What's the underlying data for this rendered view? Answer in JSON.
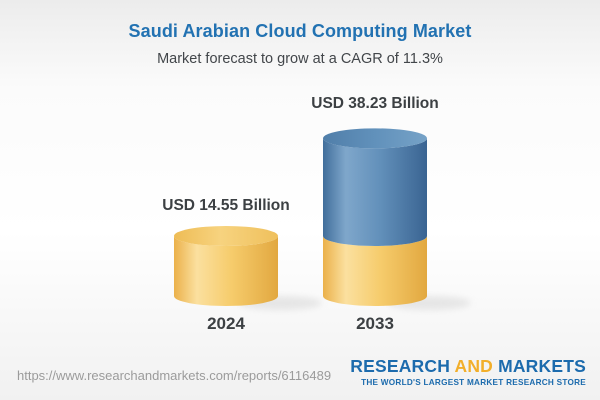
{
  "header": {
    "title": "Saudi Arabian Cloud Computing Market",
    "subtitle": "Market forecast to grow at a CAGR of 11.3%"
  },
  "chart_data": {
    "type": "bar",
    "subtype": "3d-cylinder-stacked",
    "title": "Saudi Arabian Cloud Computing Market",
    "subtitle": "Market forecast to grow at a CAGR of 11.3%",
    "cagr_percent": 11.3,
    "unit": "USD Billion",
    "categories": [
      "2024",
      "2033"
    ],
    "values": [
      14.55,
      38.23
    ],
    "value_labels": [
      "USD 14.55 Billion",
      "USD 38.23 Billion"
    ],
    "series_note": "2033 cylinder shows a gold base segment equal to the 2024 value (14.55) with a blue growth segment (23.68) stacked on top",
    "legend": "none",
    "axes": "none",
    "grid": false,
    "colors": {
      "gold_segment": "#F2C766",
      "blue_segment": "#4E7EAB",
      "label_text": "#3C4043",
      "title_blue": "#2272B2"
    }
  },
  "footer": {
    "url": "https://www.researchandmarkets.com/reports/6116489",
    "logo": {
      "research": "RESEARCH",
      "and": "AND",
      "markets": "MARKETS",
      "tagline": "THE WORLD'S LARGEST MARKET RESEARCH STORE"
    }
  }
}
